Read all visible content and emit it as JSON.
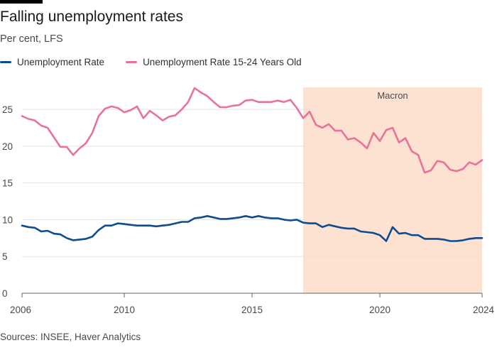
{
  "title": "Falling unemployment rates",
  "subtitle": "Per cent, LFS",
  "source": "Sources: INSEE, Haver Analytics",
  "colors": {
    "series1": "#0f4c8f",
    "series2": "#e8729a",
    "shade": "#fde2d2",
    "grid": "#e6e2de"
  },
  "chart_data": {
    "type": "line",
    "xlim": [
      2006,
      2024
    ],
    "ylim": [
      0,
      28
    ],
    "yticks": [
      0,
      5,
      10,
      15,
      20,
      25
    ],
    "xticks": [
      2006,
      2010,
      2015,
      2020,
      2024
    ],
    "grid": true,
    "legend": "top-left",
    "shaded_region": {
      "label": "Macron",
      "start": 2017.0,
      "end": 2024.0
    },
    "series": [
      {
        "name": "Unemployment Rate",
        "x": [
          2006.0,
          2006.25,
          2006.5,
          2006.75,
          2007.0,
          2007.25,
          2007.5,
          2007.75,
          2008.0,
          2008.25,
          2008.5,
          2008.75,
          2009.0,
          2009.25,
          2009.5,
          2009.75,
          2010.0,
          2010.25,
          2010.5,
          2010.75,
          2011.0,
          2011.25,
          2011.5,
          2011.75,
          2012.0,
          2012.25,
          2012.5,
          2012.75,
          2013.0,
          2013.25,
          2013.5,
          2013.75,
          2014.0,
          2014.25,
          2014.5,
          2014.75,
          2015.0,
          2015.25,
          2015.5,
          2015.75,
          2016.0,
          2016.25,
          2016.5,
          2016.75,
          2017.0,
          2017.25,
          2017.5,
          2017.75,
          2018.0,
          2018.25,
          2018.5,
          2018.75,
          2019.0,
          2019.25,
          2019.5,
          2019.75,
          2020.0,
          2020.25,
          2020.5,
          2020.75,
          2021.0,
          2021.25,
          2021.5,
          2021.75,
          2022.0,
          2022.25,
          2022.5,
          2022.75,
          2023.0,
          2023.25,
          2023.5,
          2023.75,
          2024.0
        ],
        "values": [
          9.2,
          9.0,
          8.9,
          8.4,
          8.5,
          8.1,
          8.0,
          7.5,
          7.2,
          7.3,
          7.4,
          7.7,
          8.6,
          9.2,
          9.2,
          9.5,
          9.4,
          9.3,
          9.2,
          9.2,
          9.2,
          9.1,
          9.2,
          9.3,
          9.5,
          9.7,
          9.7,
          10.2,
          10.3,
          10.5,
          10.3,
          10.1,
          10.1,
          10.2,
          10.3,
          10.5,
          10.3,
          10.5,
          10.3,
          10.2,
          10.2,
          10.0,
          9.9,
          10.0,
          9.6,
          9.5,
          9.5,
          9.0,
          9.3,
          9.1,
          8.9,
          8.8,
          8.8,
          8.4,
          8.3,
          8.2,
          7.9,
          7.1,
          9.0,
          8.1,
          8.2,
          7.9,
          7.9,
          7.4,
          7.4,
          7.4,
          7.3,
          7.1,
          7.1,
          7.2,
          7.4,
          7.5,
          7.5
        ]
      },
      {
        "name": "Unemployment Rate 15-24 Years Old",
        "x": [
          2006.0,
          2006.25,
          2006.5,
          2006.75,
          2007.0,
          2007.25,
          2007.5,
          2007.75,
          2008.0,
          2008.25,
          2008.5,
          2008.75,
          2009.0,
          2009.25,
          2009.5,
          2009.75,
          2010.0,
          2010.25,
          2010.5,
          2010.75,
          2011.0,
          2011.25,
          2011.5,
          2011.75,
          2012.0,
          2012.25,
          2012.5,
          2012.75,
          2013.0,
          2013.25,
          2013.5,
          2013.75,
          2014.0,
          2014.25,
          2014.5,
          2014.75,
          2015.0,
          2015.25,
          2015.5,
          2015.75,
          2016.0,
          2016.25,
          2016.5,
          2016.75,
          2017.0,
          2017.25,
          2017.5,
          2017.75,
          2018.0,
          2018.25,
          2018.5,
          2018.75,
          2019.0,
          2019.25,
          2019.5,
          2019.75,
          2020.0,
          2020.25,
          2020.5,
          2020.75,
          2021.0,
          2021.25,
          2021.5,
          2021.75,
          2022.0,
          2022.25,
          2022.5,
          2022.75,
          2023.0,
          2023.25,
          2023.5,
          2023.75,
          2024.0
        ],
        "values": [
          24.1,
          23.7,
          23.5,
          22.8,
          22.5,
          21.2,
          19.9,
          19.9,
          18.8,
          19.7,
          20.4,
          21.8,
          24.1,
          25.1,
          25.4,
          25.2,
          24.6,
          24.9,
          25.4,
          23.8,
          24.8,
          24.2,
          23.5,
          24.0,
          24.2,
          25.0,
          26.0,
          27.9,
          27.3,
          26.8,
          26.0,
          25.3,
          25.3,
          25.5,
          25.6,
          26.2,
          26.3,
          26.0,
          26.0,
          26.0,
          26.2,
          26.0,
          26.3,
          25.2,
          23.8,
          24.7,
          22.9,
          22.5,
          23.0,
          22.1,
          22.1,
          20.9,
          21.1,
          20.5,
          19.7,
          21.8,
          20.7,
          22.2,
          22.5,
          20.5,
          21.1,
          19.3,
          18.8,
          16.4,
          16.7,
          18.0,
          17.8,
          16.8,
          16.6,
          16.9,
          17.8,
          17.5,
          18.1
        ]
      }
    ]
  }
}
